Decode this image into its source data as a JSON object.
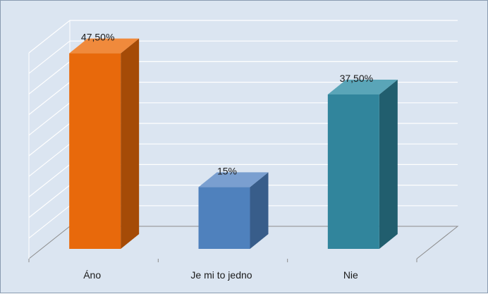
{
  "chart_data": {
    "type": "bar",
    "categories": [
      "Áno",
      "Je mi to jedno",
      "Nie"
    ],
    "values": [
      47.5,
      15,
      37.5
    ],
    "data_labels": [
      "47,50%",
      "15%",
      "37,50%"
    ],
    "ylim": [
      0,
      50
    ],
    "grid": true,
    "gridline_count": 10,
    "three_d": true,
    "colors": {
      "bars": [
        "#e8690b",
        "#4f81bd",
        "#31859c"
      ],
      "bar_sides": [
        "#a54b07",
        "#385d8a",
        "#215e6e"
      ],
      "bar_tops": [
        "#f08a3c",
        "#7a9fd0",
        "#5aa5b8"
      ],
      "grid": "#ffffff",
      "axis": "#8c8c8c",
      "background": "#dbe5f1"
    }
  }
}
